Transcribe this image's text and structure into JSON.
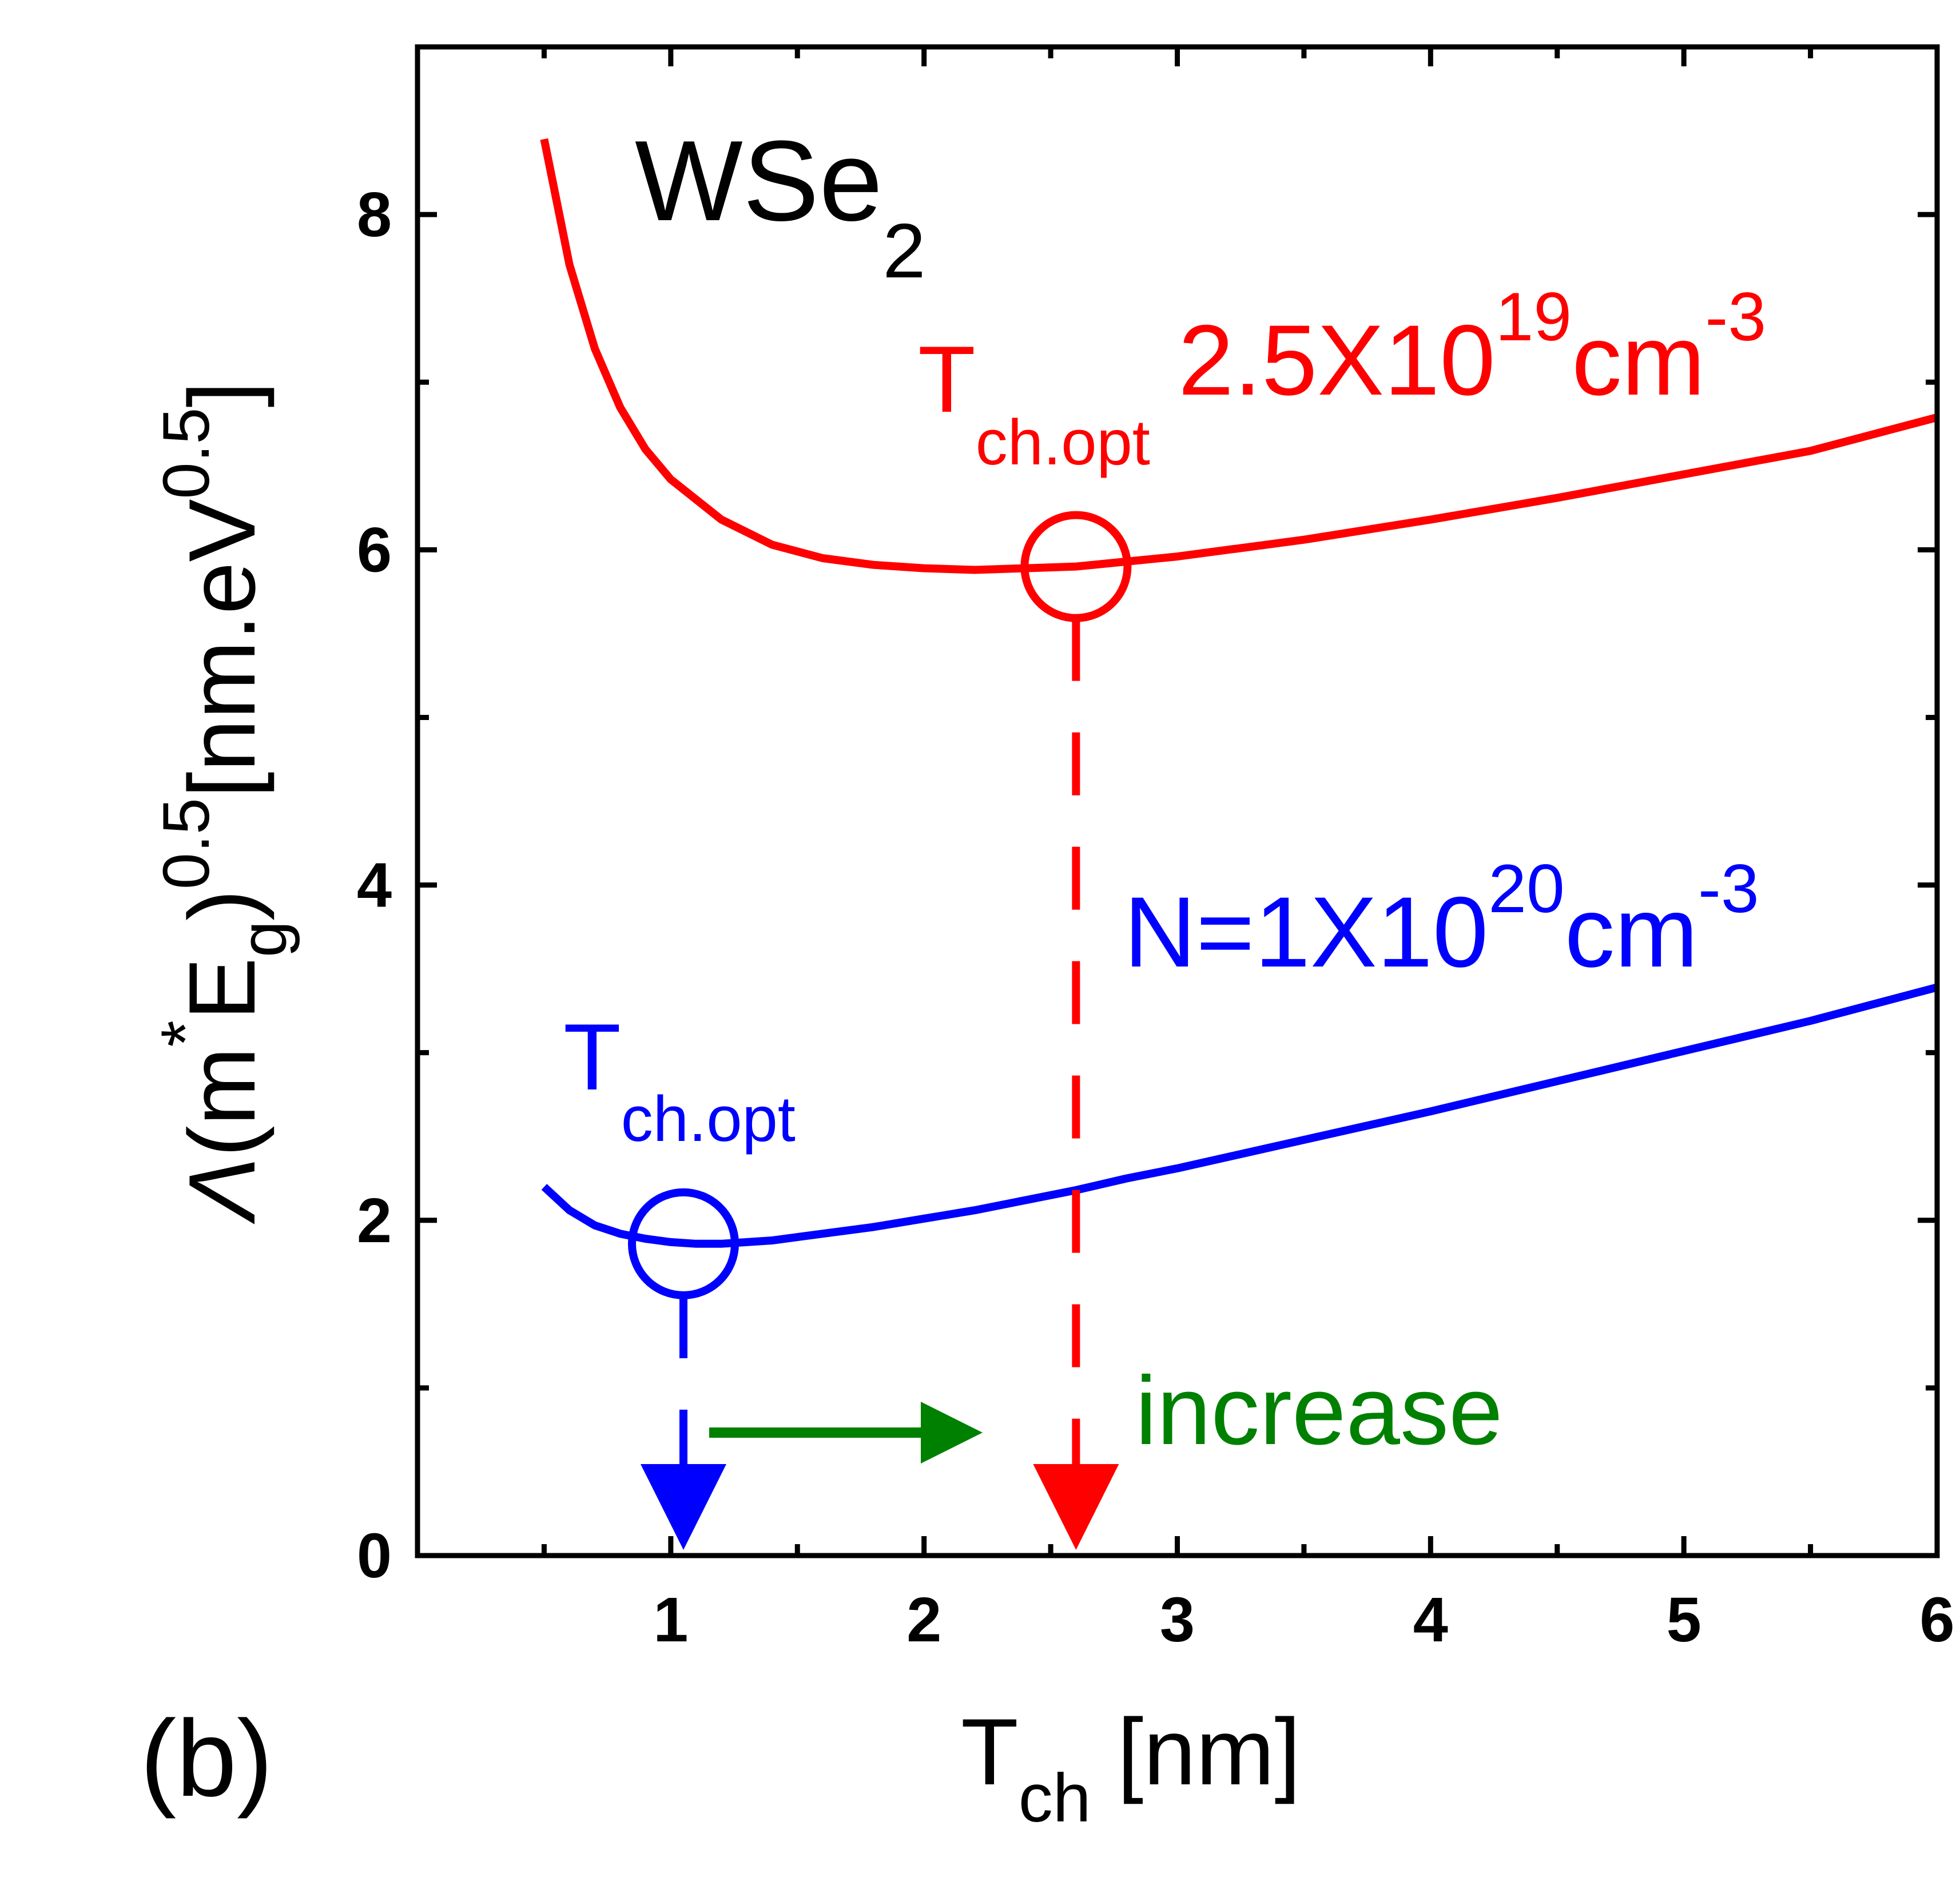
{
  "chart_data": {
    "type": "line",
    "panel_label": "(b)",
    "material": {
      "main": "WSe",
      "sub": "2"
    },
    "xlabel": {
      "main": "T",
      "sub": "ch",
      "unit": " [nm]"
    },
    "ylabel": {
      "lambda": "Λ",
      "open": "(m",
      "star": "*",
      "E": "E",
      "g": "g",
      "close": ")",
      "exp": "0.5",
      "unit": "[nm.eV",
      "unit_exp": "0.5",
      "unit_close": "]"
    },
    "xlim": [
      0,
      6
    ],
    "ylim": [
      0,
      9
    ],
    "xticks": [
      1,
      2,
      3,
      4,
      5,
      6
    ],
    "xtick_labels": [
      "1",
      "2",
      "3",
      "4",
      "5",
      "6"
    ],
    "yticks": [
      0,
      2,
      4,
      6,
      8
    ],
    "ytick_labels": [
      "0",
      "2",
      "4",
      "6",
      "8"
    ],
    "grid": false,
    "series": [
      {
        "color": "#ff0000",
        "x": [
          0.5,
          0.6,
          0.7,
          0.8,
          0.9,
          1.0,
          1.2,
          1.4,
          1.6,
          1.8,
          2.0,
          2.2,
          2.4,
          2.6,
          2.8,
          3.0,
          3.5,
          4.0,
          4.5,
          5.0,
          5.5,
          6.0
        ],
        "y": [
          8.45,
          7.7,
          7.2,
          6.85,
          6.6,
          6.42,
          6.18,
          6.03,
          5.95,
          5.91,
          5.89,
          5.88,
          5.89,
          5.9,
          5.93,
          5.96,
          6.06,
          6.18,
          6.31,
          6.45,
          6.59,
          6.79
        ]
      },
      {
        "color": "#0000ff",
        "x": [
          0.5,
          0.6,
          0.7,
          0.8,
          0.9,
          1.0,
          1.1,
          1.2,
          1.4,
          1.6,
          1.8,
          2.0,
          2.2,
          2.4,
          2.6,
          2.8,
          3.0,
          3.5,
          4.0,
          4.5,
          5.0,
          5.5,
          6.0
        ],
        "y": [
          2.2,
          2.06,
          1.97,
          1.92,
          1.89,
          1.87,
          1.86,
          1.86,
          1.88,
          1.92,
          1.96,
          2.01,
          2.06,
          2.12,
          2.18,
          2.25,
          2.31,
          2.48,
          2.65,
          2.83,
          3.01,
          3.19,
          3.39
        ]
      }
    ],
    "annotations": {
      "red_conc": {
        "text": "2.5X10",
        "exp": "19",
        "unit": "cm",
        "unit_exp": "-3",
        "color": "#ff0000"
      },
      "blue_conc": {
        "text": "N=1X10",
        "exp": "20",
        "unit": "cm",
        "unit_exp": "-3",
        "color": "#0000ff"
      },
      "red_opt": {
        "main": "T",
        "sub": "ch.opt",
        "color": "#ff0000",
        "x": 2.6,
        "y": 5.9
      },
      "blue_opt": {
        "main": "T",
        "sub": "ch.opt",
        "color": "#0000ff",
        "x": 1.05,
        "y": 1.86
      },
      "increase": {
        "text": "increase",
        "color": "#008000"
      }
    }
  }
}
